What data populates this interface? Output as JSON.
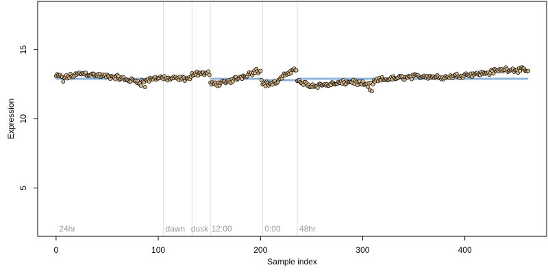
{
  "chart_data": {
    "type": "scatter",
    "title": "",
    "xlabel": "Sample index",
    "ylabel": "Expression",
    "xlim": [
      -18,
      480
    ],
    "ylim": [
      1.5,
      18.5
    ],
    "x_ticks": [
      0,
      100,
      200,
      300,
      400
    ],
    "y_ticks": [
      5,
      10,
      15
    ],
    "grid": false,
    "legend": "none",
    "colors": {
      "points_stroke": "#000000",
      "points_fill": "#d9b98a",
      "fit_line": "#8fb4dc",
      "vline": "#dddddd",
      "annotation_text": "#9a9a9a"
    },
    "vlines": [
      105,
      133,
      151,
      202,
      236
    ],
    "annotations": [
      {
        "x": 3,
        "text": "24hr"
      },
      {
        "x": 107,
        "text": "dawn"
      },
      {
        "x": 132,
        "text": "dusk"
      },
      {
        "x": 152,
        "text": "12:00"
      },
      {
        "x": 204,
        "text": "0:00"
      },
      {
        "x": 238,
        "text": "48hr"
      }
    ],
    "fit_segments": [
      {
        "from": 0,
        "to": 104,
        "y": 12.9
      },
      {
        "from": 105,
        "to": 132,
        "y": 13.0
      },
      {
        "from": 133,
        "to": 150,
        "y": 13.2
      },
      {
        "from": 151,
        "to": 201,
        "y": 12.9
      },
      {
        "from": 202,
        "to": 235,
        "y": 12.8
      },
      {
        "from": 236,
        "to": 462,
        "y": 12.9
      }
    ],
    "trend_knots": [
      [
        0,
        13.1
      ],
      [
        10,
        13.0
      ],
      [
        25,
        13.3
      ],
      [
        45,
        13.1
      ],
      [
        60,
        13.0
      ],
      [
        70,
        12.8
      ],
      [
        85,
        12.7
      ],
      [
        100,
        13.0
      ],
      [
        104,
        13.0
      ],
      [
        105,
        12.9
      ],
      [
        132,
        12.9
      ],
      [
        133,
        13.3
      ],
      [
        150,
        13.3
      ],
      [
        151,
        12.5
      ],
      [
        165,
        12.6
      ],
      [
        180,
        13.0
      ],
      [
        190,
        13.3
      ],
      [
        200,
        13.5
      ],
      [
        202,
        12.5
      ],
      [
        215,
        12.6
      ],
      [
        225,
        13.2
      ],
      [
        230,
        13.5
      ],
      [
        235,
        13.6
      ],
      [
        236,
        12.7
      ],
      [
        250,
        12.4
      ],
      [
        270,
        12.5
      ],
      [
        290,
        12.7
      ],
      [
        305,
        12.4
      ],
      [
        315,
        12.8
      ],
      [
        340,
        13.0
      ],
      [
        360,
        13.1
      ],
      [
        380,
        13.0
      ],
      [
        400,
        13.2
      ],
      [
        420,
        13.3
      ],
      [
        440,
        13.6
      ],
      [
        462,
        13.5
      ]
    ],
    "n_points": 463,
    "noise_amplitude": 0.22,
    "outliers": [
      [
        7,
        12.7
      ],
      [
        83,
        12.4
      ],
      [
        87,
        12.3
      ],
      [
        196,
        13.6
      ],
      [
        307,
        12.1
      ],
      [
        309,
        12.0
      ]
    ]
  }
}
